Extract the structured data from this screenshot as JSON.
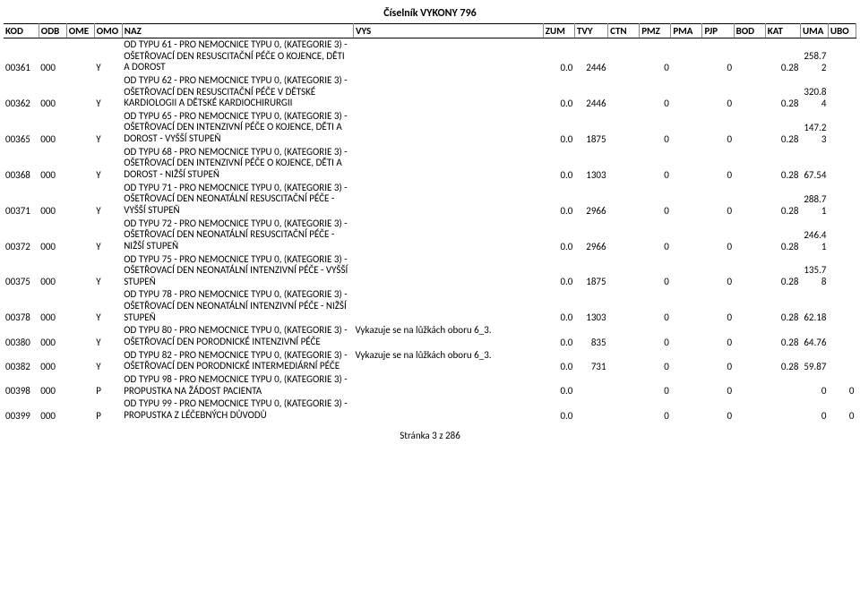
{
  "title": "Číselník VYKONY 796",
  "footer": "Stránka 3 z 286",
  "columns": [
    "KOD",
    "ODB",
    "OME",
    "OMO",
    "NAZ",
    "VYS",
    "ZUM",
    "TVY",
    "CTN",
    "PMZ",
    "PMA",
    "PJP",
    "BOD",
    "KAT",
    "UMA",
    "UBO"
  ],
  "rows": [
    {
      "kod": "00361",
      "odb": "000",
      "ome": "",
      "omo": "Y",
      "naz": "OD TYPU 61 - PRO NEMOCNICE TYPU 0, (KATEGORIE 3) - OŠETŘOVACÍ DEN RESUSCITAČNÍ PÉČE O KOJENCE, DĚTI A DOROST",
      "vys": "",
      "zum": "0.0",
      "tvy": "2446",
      "ctn": "",
      "pmz": "0",
      "pma": "",
      "pjp": "0",
      "bod": "",
      "kat": "0.28",
      "uma": "258.72",
      "ubo": ""
    },
    {
      "kod": "00362",
      "odb": "000",
      "ome": "",
      "omo": "Y",
      "naz": "OD TYPU 62 - PRO NEMOCNICE TYPU 0, (KATEGORIE 3) - OŠETŘOVACÍ DEN RESUSCITAČNÍ PÉČE V DĚTSKÉ KARDIOLOGII A DĚTSKÉ KARDIOCHIRURGII",
      "vys": "",
      "zum": "0.0",
      "tvy": "2446",
      "ctn": "",
      "pmz": "0",
      "pma": "",
      "pjp": "0",
      "bod": "",
      "kat": "0.28",
      "uma": "320.84",
      "ubo": ""
    },
    {
      "kod": "00365",
      "odb": "000",
      "ome": "",
      "omo": "Y",
      "naz": "OD TYPU 65 - PRO NEMOCNICE TYPU 0, (KATEGORIE 3) - OŠETŘOVACÍ DEN INTENZIVNÍ PÉČE O KOJENCE, DĚTI A DOROST - VYŠŠÍ STUPEŇ",
      "vys": "",
      "zum": "0.0",
      "tvy": "1875",
      "ctn": "",
      "pmz": "0",
      "pma": "",
      "pjp": "0",
      "bod": "",
      "kat": "0.28",
      "uma": "147.23",
      "ubo": ""
    },
    {
      "kod": "00368",
      "odb": "000",
      "ome": "",
      "omo": "Y",
      "naz": "OD TYPU 68 - PRO NEMOCNICE TYPU 0, (KATEGORIE 3) - OŠETŘOVACÍ DEN INTENZIVNÍ PÉČE O KOJENCE, DĚTI A DOROST - NIŽŠÍ STUPEŇ",
      "vys": "",
      "zum": "0.0",
      "tvy": "1303",
      "ctn": "",
      "pmz": "0",
      "pma": "",
      "pjp": "0",
      "bod": "",
      "kat": "0.28",
      "uma": "67.54",
      "ubo": ""
    },
    {
      "kod": "00371",
      "odb": "000",
      "ome": "",
      "omo": "Y",
      "naz": "OD TYPU 71 - PRO NEMOCNICE TYPU 0, (KATEGORIE 3) - OŠETŘOVACÍ DEN NEONATÁLNÍ RESUSCITAČNÍ PÉČE - VYŠŠÍ STUPEŇ",
      "vys": "",
      "zum": "0.0",
      "tvy": "2966",
      "ctn": "",
      "pmz": "0",
      "pma": "",
      "pjp": "0",
      "bod": "",
      "kat": "0.28",
      "uma": "288.71",
      "ubo": ""
    },
    {
      "kod": "00372",
      "odb": "000",
      "ome": "",
      "omo": "Y",
      "naz": "OD TYPU 72 - PRO NEMOCNICE TYPU 0, (KATEGORIE 3) - OŠETŘOVACÍ DEN NEONATÁLNÍ RESUSCITAČNÍ PÉČE - NIŽŠÍ STUPEŇ",
      "vys": "",
      "zum": "0.0",
      "tvy": "2966",
      "ctn": "",
      "pmz": "0",
      "pma": "",
      "pjp": "0",
      "bod": "",
      "kat": "0.28",
      "uma": "246.41",
      "ubo": ""
    },
    {
      "kod": "00375",
      "odb": "000",
      "ome": "",
      "omo": "Y",
      "naz": "OD TYPU 75 - PRO NEMOCNICE TYPU 0, (KATEGORIE 3) - OŠETŘOVACÍ DEN NEONATÁLNÍ INTENZIVNÍ PÉČE - VYŠŠÍ STUPEŇ",
      "vys": "",
      "zum": "0.0",
      "tvy": "1875",
      "ctn": "",
      "pmz": "0",
      "pma": "",
      "pjp": "0",
      "bod": "",
      "kat": "0.28",
      "uma": "135.78",
      "ubo": ""
    },
    {
      "kod": "00378",
      "odb": "000",
      "ome": "",
      "omo": "Y",
      "naz": "OD TYPU 78 - PRO NEMOCNICE TYPU 0, (KATEGORIE 3) - OŠETŘOVACÍ DEN NEONATÁLNÍ INTENZIVNÍ PÉČE - NIŽŠÍ STUPEŇ",
      "vys": "",
      "zum": "0.0",
      "tvy": "1303",
      "ctn": "",
      "pmz": "0",
      "pma": "",
      "pjp": "0",
      "bod": "",
      "kat": "0.28",
      "uma": "62.18",
      "ubo": ""
    },
    {
      "kod": "00380",
      "odb": "000",
      "ome": "",
      "omo": "Y",
      "naz": "OD TYPU 80 - PRO NEMOCNICE TYPU 0, (KATEGORIE 3) - OŠETŘOVACÍ DEN PORODNICKÉ INTENZIVNÍ PÉČE",
      "vys": "Vykazuje se na lůžkách oboru 6_3.",
      "zum": "0.0",
      "tvy": "835",
      "ctn": "",
      "pmz": "0",
      "pma": "",
      "pjp": "0",
      "bod": "",
      "kat": "0.28",
      "uma": "64.76",
      "ubo": ""
    },
    {
      "kod": "00382",
      "odb": "000",
      "ome": "",
      "omo": "Y",
      "naz": "OD TYPU 82 - PRO NEMOCNICE TYPU 0, (KATEGORIE 3) - OŠETŘOVACÍ DEN PORODNICKÉ INTERMEDIÁRNÍ PÉČE",
      "vys": "Vykazuje se na lůžkách oboru 6_3.",
      "zum": "0.0",
      "tvy": "731",
      "ctn": "",
      "pmz": "0",
      "pma": "",
      "pjp": "0",
      "bod": "",
      "kat": "0.28",
      "uma": "59.87",
      "ubo": ""
    },
    {
      "kod": "00398",
      "odb": "000",
      "ome": "",
      "omo": "P",
      "naz": "OD TYPU 98 - PRO NEMOCNICE TYPU 0, (KATEGORIE 3) - PROPUSTKA NA ŽÁDOST PACIENTA",
      "vys": "",
      "zum": "0.0",
      "tvy": "",
      "ctn": "",
      "pmz": "0",
      "pma": "",
      "pjp": "0",
      "bod": "",
      "kat": "",
      "uma": "0",
      "ubo": "0"
    },
    {
      "kod": "00399",
      "odb": "000",
      "ome": "",
      "omo": "P",
      "naz": "OD TYPU 99 - PRO NEMOCNICE TYPU 0, (KATEGORIE 3) - PROPUSTKA Z LÉČEBNÝCH DŮVODŮ",
      "vys": "",
      "zum": "0.0",
      "tvy": "",
      "ctn": "",
      "pmz": "0",
      "pma": "",
      "pjp": "0",
      "bod": "",
      "kat": "",
      "uma": "0",
      "ubo": "0"
    }
  ]
}
